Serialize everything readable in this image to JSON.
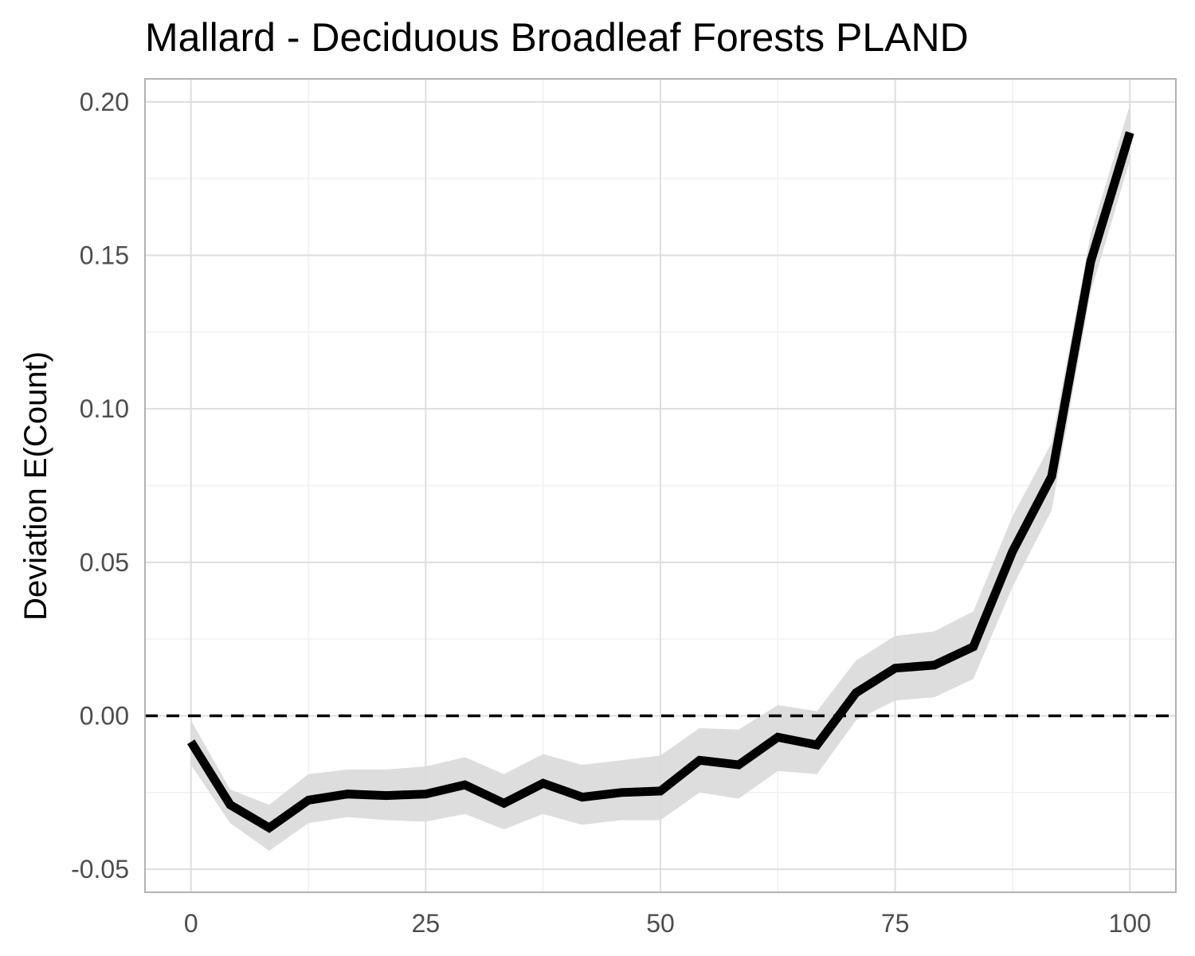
{
  "chart_data": {
    "type": "line",
    "title": "Mallard - Deciduous Broadleaf Forests PLAND",
    "xlabel": "",
    "ylabel": "Deviation E(Count)",
    "xlim": [
      -4.9,
      104.9
    ],
    "ylim": [
      -0.0575,
      0.2075
    ],
    "x_ticks": [
      0,
      25,
      50,
      75,
      100
    ],
    "x_tick_labels": [
      "0",
      "25",
      "50",
      "75",
      "100"
    ],
    "y_ticks": [
      -0.05,
      0.0,
      0.05,
      0.1,
      0.15,
      0.2
    ],
    "y_tick_labels": [
      "-0.05",
      "0.00",
      "0.05",
      "0.10",
      "0.15",
      "0.20"
    ],
    "grid": true,
    "reference_line": {
      "y": 0,
      "style": "dashed"
    },
    "series": [
      {
        "x": [
          0,
          4.17,
          8.33,
          12.5,
          16.67,
          20.83,
          25,
          29.17,
          33.33,
          37.5,
          41.67,
          45.83,
          50,
          54.17,
          58.33,
          62.5,
          66.67,
          70.83,
          75,
          79.17,
          83.33,
          87.5,
          91.67,
          95.83,
          100
        ],
        "values": [
          -0.0085,
          -0.029,
          -0.0365,
          -0.0275,
          -0.0255,
          -0.026,
          -0.0255,
          -0.0225,
          -0.0285,
          -0.022,
          -0.0265,
          -0.025,
          -0.0245,
          -0.0145,
          -0.016,
          -0.007,
          -0.0095,
          0.0075,
          0.0155,
          0.0165,
          0.0225,
          0.0535,
          0.078,
          0.148,
          0.19
        ],
        "ci_lower": [
          -0.016,
          -0.035,
          -0.044,
          -0.035,
          -0.033,
          -0.034,
          -0.0345,
          -0.032,
          -0.037,
          -0.032,
          -0.0355,
          -0.034,
          -0.034,
          -0.025,
          -0.027,
          -0.018,
          -0.019,
          -0.0015,
          0.005,
          0.006,
          0.012,
          0.042,
          0.067,
          0.138,
          0.181
        ],
        "ci_upper": [
          -0.0015,
          -0.024,
          -0.029,
          -0.019,
          -0.0175,
          -0.0175,
          -0.0165,
          -0.0135,
          -0.019,
          -0.0125,
          -0.016,
          -0.0145,
          -0.013,
          -0.004,
          -0.0045,
          0.0035,
          0.0015,
          0.018,
          0.026,
          0.0275,
          0.034,
          0.065,
          0.089,
          0.157,
          0.199
        ]
      }
    ],
    "colors": {
      "line": "#000000",
      "ribbon": "#d9d9d9",
      "grid_major": "#dedede",
      "grid_minor": "#f0f0f0",
      "panel_border": "#b3b3b3",
      "tick_text": "#4d4d4d"
    }
  }
}
